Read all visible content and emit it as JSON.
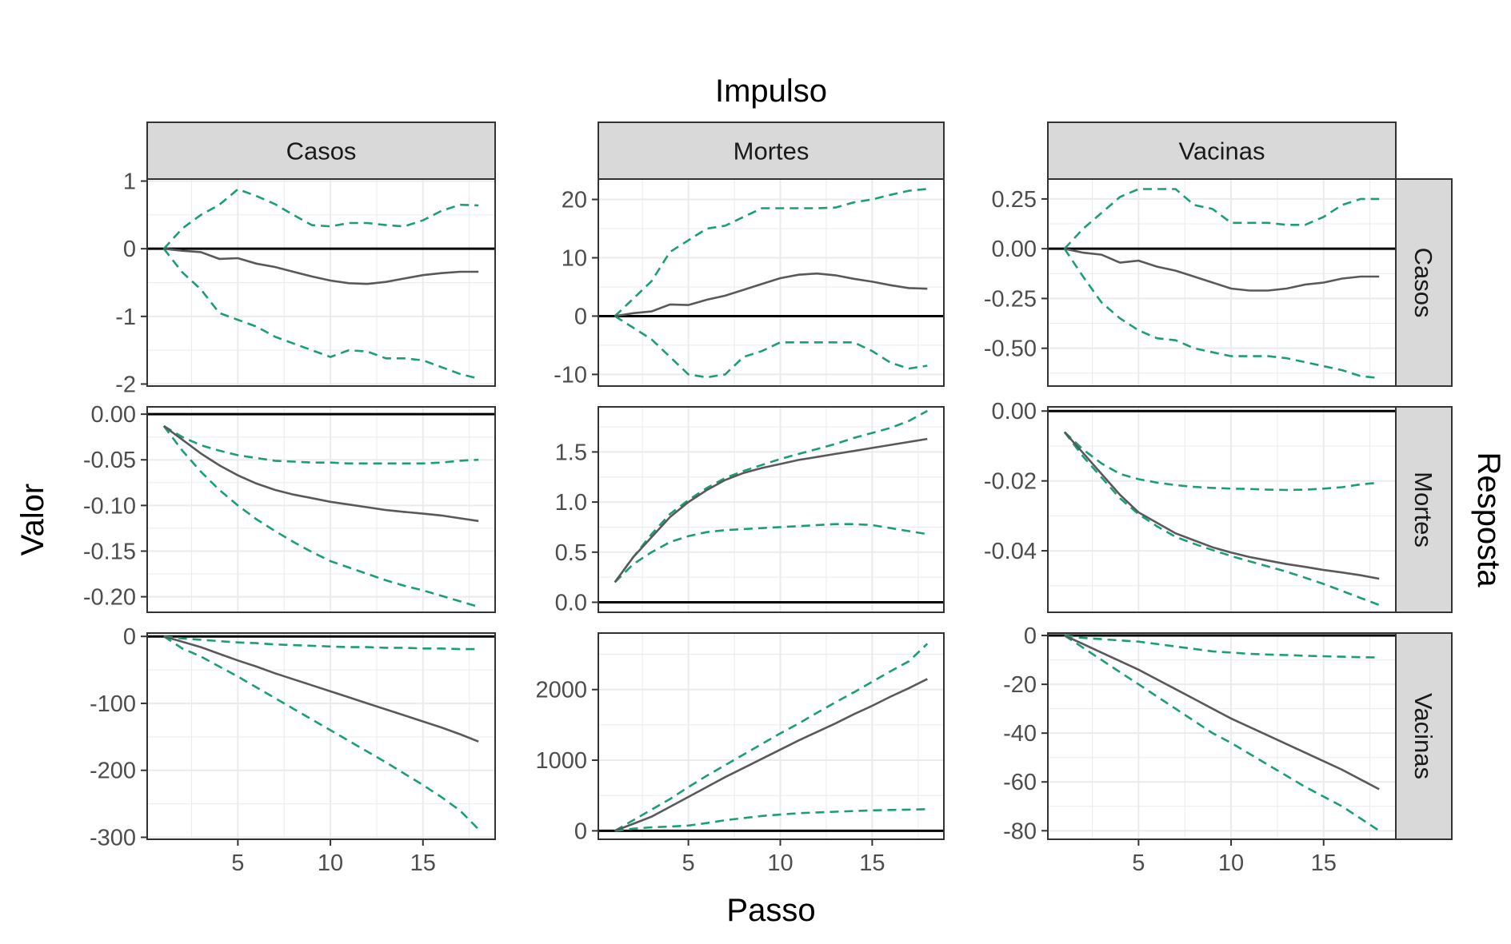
{
  "chart_data": {
    "type": "line",
    "title": "Impulso",
    "xlabel": "Passo",
    "ylabel": "Valor",
    "row_strip_title": "Resposta",
    "colors": {
      "irf": "#595959",
      "bounds": "#1b9e77",
      "zero": "#000000",
      "strip_fill": "#d9d9d9",
      "grid": "#ebebeb"
    },
    "x": [
      1,
      2,
      3,
      4,
      5,
      6,
      7,
      8,
      9,
      10,
      11,
      12,
      13,
      14,
      15,
      16,
      17,
      18
    ],
    "x_ticks": [
      5,
      10,
      15
    ],
    "xlim": [
      0.1,
      18.9
    ],
    "columns": [
      "Casos",
      "Mortes",
      "Vacinas"
    ],
    "rows": [
      "Casos",
      "Mortes",
      "Vacinas"
    ],
    "panels": [
      {
        "impulse": "Casos",
        "response": "Casos",
        "ylim": [
          -2.03,
          1.03
        ],
        "y_ticks": [
          {
            "value": 1,
            "label": "1"
          },
          {
            "value": 0,
            "label": "0"
          },
          {
            "value": -1,
            "label": "-1"
          },
          {
            "value": -2,
            "label": "-2"
          }
        ],
        "irf": [
          0,
          -0.03,
          -0.05,
          -0.15,
          -0.14,
          -0.22,
          -0.27,
          -0.34,
          -0.41,
          -0.47,
          -0.51,
          -0.52,
          -0.49,
          -0.44,
          -0.39,
          -0.36,
          -0.34,
          -0.34
        ],
        "upper": [
          0,
          0.3,
          0.5,
          0.65,
          0.88,
          0.78,
          0.66,
          0.5,
          0.35,
          0.33,
          0.38,
          0.38,
          0.35,
          0.33,
          0.42,
          0.56,
          0.65,
          0.64
        ],
        "lower": [
          0,
          -0.35,
          -0.6,
          -0.95,
          -1.05,
          -1.15,
          -1.3,
          -1.4,
          -1.5,
          -1.6,
          -1.5,
          -1.52,
          -1.62,
          -1.62,
          -1.65,
          -1.75,
          -1.85,
          -1.92
        ]
      },
      {
        "impulse": "Mortes",
        "response": "Casos",
        "ylim": [
          -12,
          23.5
        ],
        "y_ticks": [
          {
            "value": 20,
            "label": "20"
          },
          {
            "value": 10,
            "label": "10"
          },
          {
            "value": 0,
            "label": "0"
          },
          {
            "value": -10,
            "label": "-10"
          }
        ],
        "irf": [
          0,
          0.5,
          0.8,
          2,
          1.9,
          2.8,
          3.5,
          4.5,
          5.5,
          6.5,
          7.1,
          7.3,
          7,
          6.4,
          5.9,
          5.3,
          4.8,
          4.7
        ],
        "upper": [
          0,
          3,
          6,
          11,
          13,
          15,
          15.5,
          17,
          18.5,
          18.5,
          18.5,
          18.5,
          18.6,
          19.5,
          20,
          20.8,
          21.5,
          21.8
        ],
        "lower": [
          0,
          -2,
          -4,
          -7,
          -10,
          -10.5,
          -10,
          -7,
          -6,
          -4.5,
          -4.5,
          -4.5,
          -4.5,
          -4.5,
          -6,
          -8,
          -9,
          -8.5
        ]
      },
      {
        "impulse": "Vacinas",
        "response": "Casos",
        "ylim": [
          -0.69,
          0.35
        ],
        "y_ticks": [
          {
            "value": 0.25,
            "label": "0.25"
          },
          {
            "value": 0,
            "label": "0.00"
          },
          {
            "value": -0.25,
            "label": "-0.25"
          },
          {
            "value": -0.5,
            "label": "-0.50"
          }
        ],
        "irf": [
          0,
          -0.02,
          -0.03,
          -0.07,
          -0.06,
          -0.09,
          -0.11,
          -0.14,
          -0.17,
          -0.2,
          -0.21,
          -0.21,
          -0.2,
          -0.18,
          -0.17,
          -0.15,
          -0.14,
          -0.14
        ],
        "upper": [
          0,
          0.1,
          0.18,
          0.26,
          0.3,
          0.3,
          0.3,
          0.22,
          0.2,
          0.13,
          0.13,
          0.13,
          0.12,
          0.12,
          0.16,
          0.22,
          0.25,
          0.25
        ],
        "lower": [
          0,
          -0.14,
          -0.27,
          -0.35,
          -0.41,
          -0.45,
          -0.46,
          -0.5,
          -0.52,
          -0.54,
          -0.54,
          -0.54,
          -0.55,
          -0.57,
          -0.59,
          -0.61,
          -0.64,
          -0.65
        ]
      },
      {
        "impulse": "Casos",
        "response": "Mortes",
        "ylim": [
          -0.217,
          0.008
        ],
        "y_ticks": [
          {
            "value": 0,
            "label": "0.00"
          },
          {
            "value": -0.05,
            "label": "-0.05"
          },
          {
            "value": -0.1,
            "label": "-0.10"
          },
          {
            "value": -0.15,
            "label": "-0.15"
          },
          {
            "value": -0.2,
            "label": "-0.20"
          }
        ],
        "irf": [
          -0.013,
          -0.028,
          -0.043,
          -0.056,
          -0.067,
          -0.076,
          -0.083,
          -0.088,
          -0.092,
          -0.096,
          -0.099,
          -0.102,
          -0.105,
          -0.107,
          -0.109,
          -0.111,
          -0.114,
          -0.117
        ],
        "upper": [
          -0.013,
          -0.025,
          -0.034,
          -0.04,
          -0.045,
          -0.048,
          -0.051,
          -0.052,
          -0.053,
          -0.053,
          -0.054,
          -0.054,
          -0.054,
          -0.054,
          -0.054,
          -0.053,
          -0.051,
          -0.05
        ],
        "lower": [
          -0.013,
          -0.04,
          -0.063,
          -0.083,
          -0.1,
          -0.115,
          -0.128,
          -0.14,
          -0.151,
          -0.161,
          -0.168,
          -0.175,
          -0.182,
          -0.188,
          -0.193,
          -0.199,
          -0.205,
          -0.211
        ]
      },
      {
        "impulse": "Mortes",
        "response": "Mortes",
        "ylim": [
          -0.1,
          1.95
        ],
        "y_ticks": [
          {
            "value": 1.5,
            "label": "1.5"
          },
          {
            "value": 1,
            "label": "1.0"
          },
          {
            "value": 0.5,
            "label": "0.5"
          },
          {
            "value": 0,
            "label": "0.0"
          }
        ],
        "irf": [
          0.2,
          0.45,
          0.65,
          0.85,
          1.0,
          1.12,
          1.22,
          1.29,
          1.34,
          1.38,
          1.42,
          1.45,
          1.48,
          1.51,
          1.54,
          1.57,
          1.6,
          1.63
        ],
        "upper": [
          0.2,
          0.45,
          0.68,
          0.88,
          1.02,
          1.14,
          1.24,
          1.31,
          1.37,
          1.43,
          1.48,
          1.53,
          1.58,
          1.64,
          1.69,
          1.74,
          1.81,
          1.91
        ],
        "lower": [
          0.2,
          0.38,
          0.5,
          0.6,
          0.66,
          0.7,
          0.72,
          0.73,
          0.74,
          0.75,
          0.76,
          0.77,
          0.78,
          0.78,
          0.77,
          0.74,
          0.71,
          0.68
        ]
      },
      {
        "impulse": "Vacinas",
        "response": "Mortes",
        "ylim": [
          -0.0576,
          0.0012
        ],
        "y_ticks": [
          {
            "value": 0,
            "label": "0.00"
          },
          {
            "value": -0.02,
            "label": "-0.02"
          },
          {
            "value": -0.04,
            "label": "-0.04"
          }
        ],
        "irf": [
          -0.006,
          -0.012,
          -0.018,
          -0.024,
          -0.029,
          -0.032,
          -0.035,
          -0.037,
          -0.039,
          -0.0405,
          -0.0418,
          -0.0428,
          -0.0438,
          -0.0446,
          -0.0455,
          -0.0462,
          -0.047,
          -0.048
        ],
        "upper": [
          -0.006,
          -0.011,
          -0.015,
          -0.018,
          -0.0195,
          -0.0205,
          -0.0212,
          -0.0217,
          -0.022,
          -0.0222,
          -0.0223,
          -0.0225,
          -0.0226,
          -0.0225,
          -0.0222,
          -0.0218,
          -0.021,
          -0.0205
        ],
        "lower": [
          -0.006,
          -0.013,
          -0.019,
          -0.025,
          -0.0295,
          -0.033,
          -0.036,
          -0.038,
          -0.0398,
          -0.0415,
          -0.043,
          -0.0445,
          -0.046,
          -0.0477,
          -0.0495,
          -0.0515,
          -0.0535,
          -0.0555
        ]
      },
      {
        "impulse": "Casos",
        "response": "Vacinas",
        "ylim": [
          -303,
          5
        ],
        "y_ticks": [
          {
            "value": 0,
            "label": "0"
          },
          {
            "value": -100,
            "label": "-100"
          },
          {
            "value": -200,
            "label": "-200"
          },
          {
            "value": -300,
            "label": "-300"
          }
        ],
        "irf": [
          0,
          -8,
          -16,
          -26,
          -36,
          -45,
          -55,
          -64,
          -73,
          -82,
          -91,
          -100,
          -109,
          -118,
          -127,
          -136,
          -146,
          -157
        ],
        "upper": [
          0,
          -3,
          -5,
          -7,
          -9,
          -10,
          -12,
          -13,
          -14,
          -15,
          -16,
          -16,
          -17,
          -17,
          -18,
          -18,
          -19,
          -19
        ],
        "lower": [
          0,
          -18,
          -30,
          -45,
          -60,
          -76,
          -92,
          -108,
          -124,
          -140,
          -156,
          -172,
          -188,
          -205,
          -222,
          -240,
          -260,
          -288
        ]
      },
      {
        "impulse": "Mortes",
        "response": "Vacinas",
        "ylim": [
          -120,
          2800
        ],
        "y_ticks": [
          {
            "value": 2000,
            "label": "2000"
          },
          {
            "value": 1000,
            "label": "1000"
          },
          {
            "value": 0,
            "label": "0"
          }
        ],
        "irf": [
          0,
          100,
          200,
          340,
          480,
          620,
          760,
          890,
          1020,
          1150,
          1280,
          1400,
          1520,
          1650,
          1770,
          1900,
          2020,
          2150
        ],
        "upper": [
          0,
          150,
          300,
          450,
          620,
          780,
          930,
          1080,
          1230,
          1380,
          1520,
          1670,
          1820,
          1960,
          2110,
          2260,
          2400,
          2650
        ],
        "lower": [
          0,
          30,
          50,
          60,
          75,
          110,
          150,
          180,
          210,
          230,
          250,
          260,
          270,
          280,
          290,
          295,
          300,
          305
        ]
      },
      {
        "impulse": "Vacinas",
        "response": "Vacinas",
        "ylim": [
          -83.5,
          1
        ],
        "y_ticks": [
          {
            "value": 0,
            "label": "0"
          },
          {
            "value": -20,
            "label": "-20"
          },
          {
            "value": -40,
            "label": "-40"
          },
          {
            "value": -60,
            "label": "-60"
          },
          {
            "value": -80,
            "label": "-80"
          }
        ],
        "irf": [
          0,
          -3.5,
          -7,
          -10.5,
          -14,
          -18,
          -22,
          -26,
          -30,
          -34,
          -37.5,
          -41,
          -44.5,
          -48,
          -51.5,
          -55,
          -59,
          -63
        ],
        "upper": [
          0,
          -1,
          -1.5,
          -2,
          -2.5,
          -3.5,
          -4.5,
          -5.5,
          -6.5,
          -7,
          -7.5,
          -7.8,
          -8,
          -8.3,
          -8.5,
          -8.7,
          -8.9,
          -9
        ],
        "lower": [
          0,
          -5,
          -10,
          -15,
          -20,
          -25,
          -30,
          -35,
          -40,
          -44,
          -48.5,
          -53,
          -57.5,
          -62,
          -66,
          -70,
          -75,
          -80
        ]
      }
    ]
  }
}
